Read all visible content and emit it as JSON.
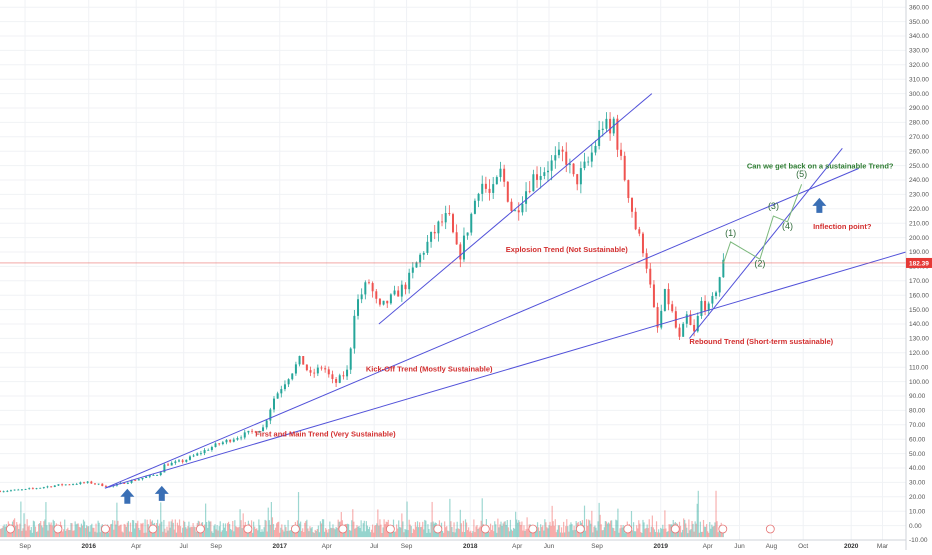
{
  "chart_data": {
    "type": "candlestick",
    "y_axis": {
      "ticks": [
        "360.00",
        "350.00",
        "340.00",
        "330.00",
        "320.00",
        "310.00",
        "300.00",
        "290.00",
        "280.00",
        "270.00",
        "260.00",
        "250.00",
        "240.00",
        "230.00",
        "220.00",
        "210.00",
        "200.00",
        "190.00",
        "180.00",
        "170.00",
        "160.00",
        "150.00",
        "140.00",
        "130.00",
        "120.00",
        "110.00",
        "100.00",
        "90.00",
        "80.00",
        "70.00",
        "60.00",
        "50.00",
        "40.00",
        "30.00",
        "20.00",
        "10.00",
        "0.00",
        "-10.00"
      ],
      "ylim": [
        -10,
        365
      ],
      "position": "right"
    },
    "x_axis": {
      "ticks": [
        {
          "label": "Sep",
          "x": "2015-09-01",
          "bold": false
        },
        {
          "label": "2016",
          "x": "2016-01-01",
          "bold": true
        },
        {
          "label": "Apr",
          "x": "2016-04-01",
          "bold": false
        },
        {
          "label": "Jul",
          "x": "2016-07-01",
          "bold": false
        },
        {
          "label": "Sep",
          "x": "2016-09-01",
          "bold": false
        },
        {
          "label": "2017",
          "x": "2017-01-01",
          "bold": true
        },
        {
          "label": "Apr",
          "x": "2017-04-01",
          "bold": false
        },
        {
          "label": "Jul",
          "x": "2017-07-01",
          "bold": false
        },
        {
          "label": "Sep",
          "x": "2017-09-01",
          "bold": false
        },
        {
          "label": "2018",
          "x": "2018-01-01",
          "bold": true
        },
        {
          "label": "Apr",
          "x": "2018-04-01",
          "bold": false
        },
        {
          "label": "Jun",
          "x": "2018-06-01",
          "bold": false
        },
        {
          "label": "Sep",
          "x": "2018-09-01",
          "bold": false
        },
        {
          "label": "2019",
          "x": "2019-01-01",
          "bold": true
        },
        {
          "label": "Apr",
          "x": "2019-04-01",
          "bold": false
        },
        {
          "label": "Jun",
          "x": "2019-06-01",
          "bold": false
        },
        {
          "label": "Aug",
          "x": "2019-08-01",
          "bold": false
        },
        {
          "label": "Oct",
          "x": "2019-10-01",
          "bold": false
        },
        {
          "label": "2020",
          "x": "2020-01-01",
          "bold": true
        },
        {
          "label": "Mar",
          "x": "2020-03-01",
          "bold": false
        }
      ],
      "xlim": [
        "2015-07-15",
        "2020-04-15"
      ]
    },
    "current_price": {
      "label": "182.39",
      "value": 182.39,
      "color": "#e53935"
    },
    "price_path": [
      {
        "x": "2015-07-15",
        "y": 24
      },
      {
        "x": "2015-09-01",
        "y": 25
      },
      {
        "x": "2015-11-01",
        "y": 28
      },
      {
        "x": "2016-01-01",
        "y": 30
      },
      {
        "x": "2016-02-10",
        "y": 27
      },
      {
        "x": "2016-04-01",
        "y": 32
      },
      {
        "x": "2016-05-15",
        "y": 36
      },
      {
        "x": "2016-05-25",
        "y": 42
      },
      {
        "x": "2016-07-01",
        "y": 45
      },
      {
        "x": "2016-09-01",
        "y": 56
      },
      {
        "x": "2016-10-15",
        "y": 62
      },
      {
        "x": "2016-12-01",
        "y": 68
      },
      {
        "x": "2016-12-20",
        "y": 88
      },
      {
        "x": "2017-01-15",
        "y": 102
      },
      {
        "x": "2017-02-10",
        "y": 116
      },
      {
        "x": "2017-03-01",
        "y": 104
      },
      {
        "x": "2017-03-25",
        "y": 111
      },
      {
        "x": "2017-04-15",
        "y": 98
      },
      {
        "x": "2017-05-10",
        "y": 107
      },
      {
        "x": "2017-05-15",
        "y": 118
      },
      {
        "x": "2017-05-25",
        "y": 152
      },
      {
        "x": "2017-06-20",
        "y": 170
      },
      {
        "x": "2017-07-10",
        "y": 150
      },
      {
        "x": "2017-08-10",
        "y": 160
      },
      {
        "x": "2017-09-01",
        "y": 168
      },
      {
        "x": "2017-10-01",
        "y": 190
      },
      {
        "x": "2017-11-01",
        "y": 208
      },
      {
        "x": "2017-11-20",
        "y": 215
      },
      {
        "x": "2017-12-10",
        "y": 185
      },
      {
        "x": "2018-01-01",
        "y": 213
      },
      {
        "x": "2018-01-20",
        "y": 240
      },
      {
        "x": "2018-02-10",
        "y": 228
      },
      {
        "x": "2018-03-01",
        "y": 246
      },
      {
        "x": "2018-03-25",
        "y": 215
      },
      {
        "x": "2018-04-10",
        "y": 228
      },
      {
        "x": "2018-05-01",
        "y": 242
      },
      {
        "x": "2018-06-01",
        "y": 250
      },
      {
        "x": "2018-07-01",
        "y": 258
      },
      {
        "x": "2018-07-20",
        "y": 238
      },
      {
        "x": "2018-08-15",
        "y": 252
      },
      {
        "x": "2018-09-01",
        "y": 268
      },
      {
        "x": "2018-09-15",
        "y": 282
      },
      {
        "x": "2018-09-25",
        "y": 268
      },
      {
        "x": "2018-10-01",
        "y": 286
      },
      {
        "x": "2018-10-15",
        "y": 255
      },
      {
        "x": "2018-11-01",
        "y": 230
      },
      {
        "x": "2018-11-15",
        "y": 205
      },
      {
        "x": "2018-12-01",
        "y": 190
      },
      {
        "x": "2018-12-10",
        "y": 170
      },
      {
        "x": "2018-12-25",
        "y": 135
      },
      {
        "x": "2019-01-10",
        "y": 162
      },
      {
        "x": "2019-01-25",
        "y": 145
      },
      {
        "x": "2019-02-05",
        "y": 128
      },
      {
        "x": "2019-02-20",
        "y": 145
      },
      {
        "x": "2019-03-05",
        "y": 132
      },
      {
        "x": "2019-03-20",
        "y": 155
      },
      {
        "x": "2019-04-05",
        "y": 150
      },
      {
        "x": "2019-04-20",
        "y": 168
      },
      {
        "x": "2019-05-01",
        "y": 182
      }
    ],
    "trendlines": [
      {
        "x1": "2016-02-01",
        "y1": 26,
        "x2": "2020-04-15",
        "y2": 190
      },
      {
        "x1": "2016-02-01",
        "y1": 26,
        "x2": "2020-01-15",
        "y2": 248
      },
      {
        "x1": "2017-07-10",
        "y1": 140,
        "x2": "2018-12-15",
        "y2": 300
      },
      {
        "x1": "2019-02-25",
        "y1": 130,
        "x2": "2019-12-15",
        "y2": 262
      }
    ],
    "projection_path": [
      {
        "x": "2019-05-01",
        "y": 182
      },
      {
        "x": "2019-05-15",
        "y": 197
      },
      {
        "x": "2019-07-10",
        "y": 185
      },
      {
        "x": "2019-08-05",
        "y": 215
      },
      {
        "x": "2019-09-01",
        "y": 211
      },
      {
        "x": "2019-09-28",
        "y": 237
      }
    ],
    "wave_labels": [
      {
        "text": "(1)",
        "x": "2019-05-15",
        "y": 201
      },
      {
        "text": "(2)",
        "x": "2019-07-10",
        "y": 180
      },
      {
        "text": "(3)",
        "x": "2019-08-05",
        "y": 220
      },
      {
        "text": "(4)",
        "x": "2019-09-01",
        "y": 206
      },
      {
        "text": "(5)",
        "x": "2019-09-28",
        "y": 242
      }
    ],
    "annotations": [
      {
        "text": "Explosion Trend (Not Sustainable)",
        "x": "2018-03-10",
        "y": 190,
        "color": "red"
      },
      {
        "text": "Kick-Off Trend (Mostly Sustainable)",
        "x": "2017-06-15",
        "y": 107,
        "color": "red"
      },
      {
        "text": "First and Main Trend (Very Sustainable)",
        "x": "2016-11-15",
        "y": 62,
        "color": "red"
      },
      {
        "text": "Rebound Trend (Short-term sustainable)",
        "x": "2019-02-25",
        "y": 126,
        "color": "red"
      },
      {
        "text": "Can we get back on a sustainable Trend?",
        "x": "2019-06-15",
        "y": 248,
        "color": "green"
      },
      {
        "text": "Inflection point?",
        "x": "2019-10-20",
        "y": 206,
        "color": "red"
      }
    ],
    "arrows": [
      {
        "x": "2016-03-15",
        "y": 20
      },
      {
        "x": "2016-05-20",
        "y": 22
      },
      {
        "x": "2019-11-01",
        "y": 222
      }
    ],
    "colors": {
      "up": "#26a69a",
      "down": "#ef5350",
      "trendline": "#5252d9",
      "projection": "#7cb87c",
      "arrow": "#3a6fb5"
    },
    "grid": true
  }
}
